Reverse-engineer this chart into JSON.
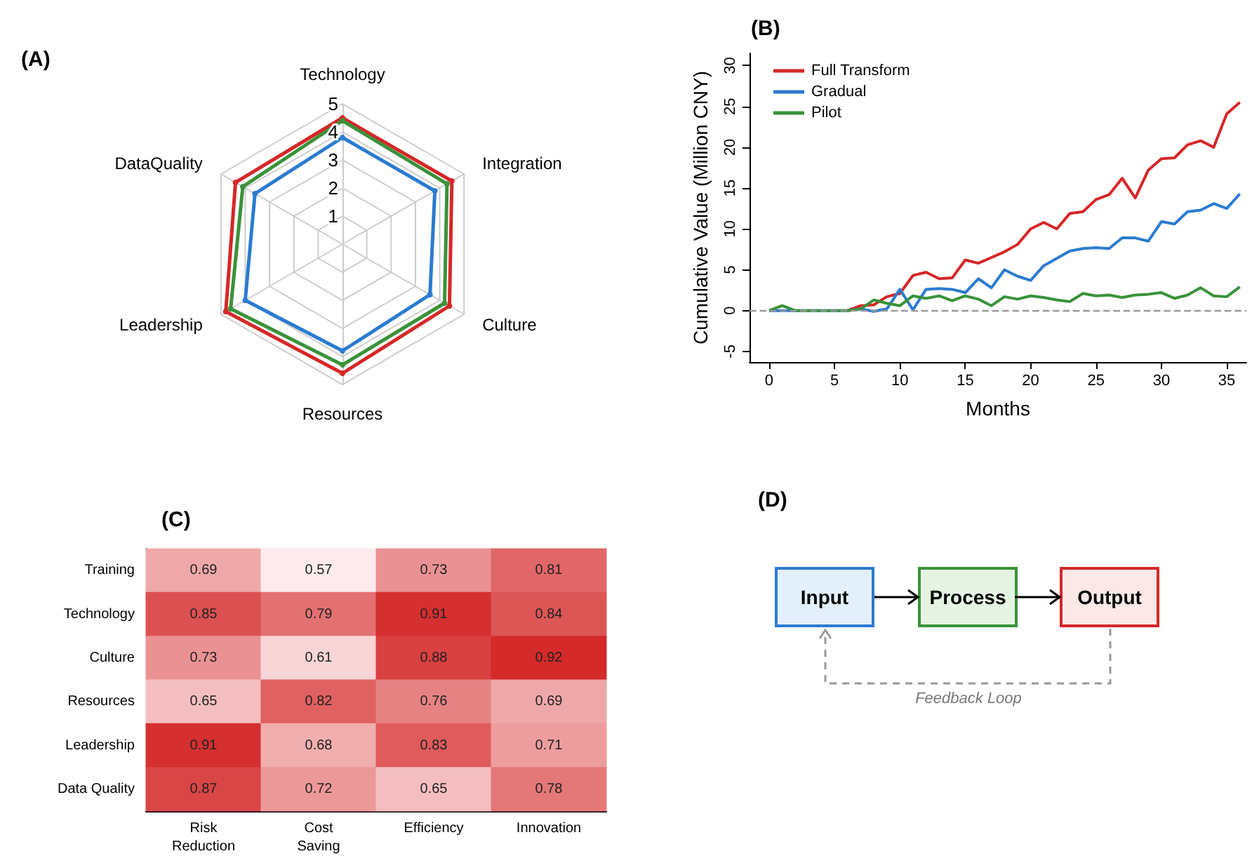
{
  "chart_data": [
    {
      "type": "radar",
      "title": "(A)",
      "categories": [
        "Technology",
        "Integration",
        "Culture",
        "Resources",
        "Leadership",
        "DataQuality"
      ],
      "ylim": [
        0,
        5
      ],
      "yticks": [
        1,
        2,
        3,
        4,
        5
      ],
      "marker": "circle",
      "legend": false,
      "series": [
        {
          "color": "#d62728",
          "values": [
            4.5,
            4.5,
            4.4,
            4.6,
            4.8,
            4.4
          ]
        },
        {
          "color": "#3a923a",
          "values": [
            4.4,
            4.3,
            4.2,
            4.3,
            4.6,
            4.1
          ]
        },
        {
          "color": "#2b7bd0",
          "values": [
            3.8,
            3.8,
            3.6,
            3.8,
            4.0,
            3.6
          ]
        }
      ]
    },
    {
      "type": "line",
      "title": "(B)",
      "xlabel": "Months",
      "ylabel": "Cumulative Value (Million CNY)",
      "x": [
        0,
        1,
        2,
        3,
        4,
        5,
        6,
        7,
        8,
        9,
        10,
        11,
        12,
        13,
        14,
        15,
        16,
        17,
        18,
        19,
        20,
        21,
        22,
        23,
        24,
        25,
        26,
        27,
        28,
        29,
        30,
        31,
        32,
        33,
        34,
        35,
        36
      ],
      "xlim": [
        -1.5,
        36.5
      ],
      "ylim": [
        -6.3,
        31.5
      ],
      "xticks": [
        0,
        5,
        10,
        15,
        20,
        25,
        30,
        35
      ],
      "yticks": [
        -5,
        0,
        5,
        10,
        15,
        20,
        25,
        30
      ],
      "legend": "top left",
      "marker": "none",
      "grid": false,
      "ref_lines": [
        {
          "axis": "y",
          "value": 0,
          "color": "#999999",
          "line_style": "dashed"
        }
      ],
      "series": [
        {
          "name": "Full Transform",
          "color": "#d62728",
          "values": [
            null,
            null,
            null,
            null,
            null,
            null,
            0,
            0.6,
            0.7,
            1.7,
            2.1,
            4.3,
            4.7,
            3.9,
            4.0,
            6.2,
            5.8,
            6.5,
            7.2,
            8.1,
            10.0,
            10.8,
            10.0,
            11.9,
            12.1,
            13.6,
            14.2,
            16.2,
            13.8,
            17.2,
            18.6,
            18.7,
            20.3,
            20.8,
            20.0,
            24.1,
            25.5
          ]
        },
        {
          "name": "Gradual",
          "color": "#2b7bd0",
          "values": [
            0,
            0,
            0,
            0,
            0,
            0,
            0,
            0.2,
            -0.1,
            0.2,
            2.6,
            0.1,
            2.6,
            2.7,
            2.6,
            2.2,
            3.9,
            2.8,
            5.0,
            4.2,
            3.7,
            5.5,
            6.4,
            7.3,
            7.6,
            7.7,
            7.6,
            8.9,
            8.9,
            8.5,
            10.9,
            10.6,
            12.1,
            12.3,
            13.1,
            12.5,
            14.3
          ]
        },
        {
          "name": "Pilot",
          "color": "#3a923a",
          "values": [
            0,
            0.6,
            0,
            0,
            0,
            0,
            0,
            0.2,
            1.3,
            0.9,
            0.6,
            1.8,
            1.5,
            1.8,
            1.2,
            1.8,
            1.4,
            0.6,
            1.7,
            1.4,
            1.8,
            1.6,
            1.3,
            1.1,
            2.1,
            1.8,
            1.9,
            1.6,
            1.9,
            2.0,
            2.2,
            1.5,
            1.9,
            2.8,
            1.8,
            1.7,
            2.9
          ]
        }
      ]
    },
    {
      "type": "heatmap",
      "title": "(C)",
      "categories": [
        "Risk\nReduction",
        "Cost\nSaving",
        "Efficiency",
        "Innovation"
      ],
      "y_categories": [
        "Training",
        "Technology",
        "Culture",
        "Resources",
        "Leadership",
        "Data Quality"
      ],
      "data_labels": true,
      "cells": [
        [
          0.69,
          0.57,
          0.73,
          0.81
        ],
        [
          0.85,
          0.79,
          0.91,
          0.84
        ],
        [
          0.73,
          0.61,
          0.88,
          0.92
        ],
        [
          0.65,
          0.82,
          0.76,
          0.69
        ],
        [
          0.91,
          0.68,
          0.83,
          0.71
        ],
        [
          0.87,
          0.72,
          0.65,
          0.78
        ]
      ]
    },
    {
      "type": "other",
      "title": "(D)",
      "annotations": [
        "Input",
        "Process",
        "Output",
        "Feedback Loop"
      ]
    }
  ]
}
